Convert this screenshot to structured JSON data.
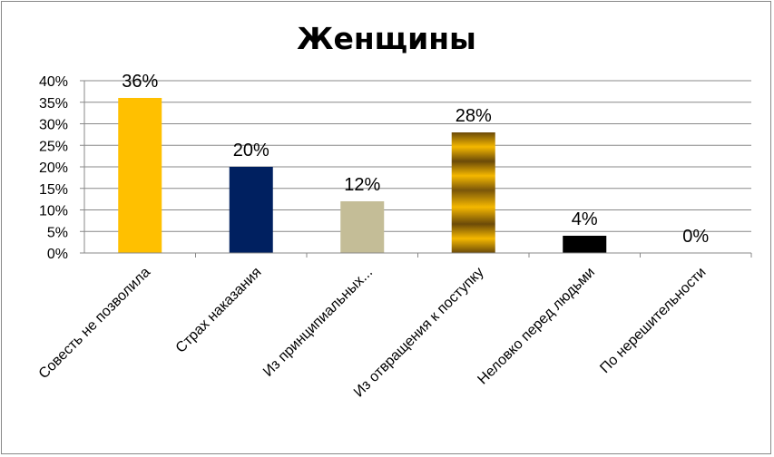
{
  "chart_data": {
    "type": "bar",
    "title": "Женщины",
    "categories": [
      "Совесть не позволила",
      "Страх наказания",
      "Из принципиальных...",
      "Из отвращения к поступку",
      "Неловко перед людьми",
      "По нерешительности"
    ],
    "values": [
      36,
      20,
      12,
      28,
      4,
      0
    ],
    "data_labels": [
      "36%",
      "20%",
      "12%",
      "28%",
      "4%",
      "0%"
    ],
    "colors": [
      "#FFC000",
      "#002060",
      "#C4BD97",
      "#B07A0A",
      "#000000",
      "#FFFFFF"
    ],
    "y_ticks": [
      "0%",
      "5%",
      "10%",
      "15%",
      "20%",
      "25%",
      "30%",
      "35%",
      "40%"
    ],
    "ylim": [
      0,
      40
    ],
    "xlabel": "",
    "ylabel": "",
    "grid": true,
    "legend": "none"
  }
}
